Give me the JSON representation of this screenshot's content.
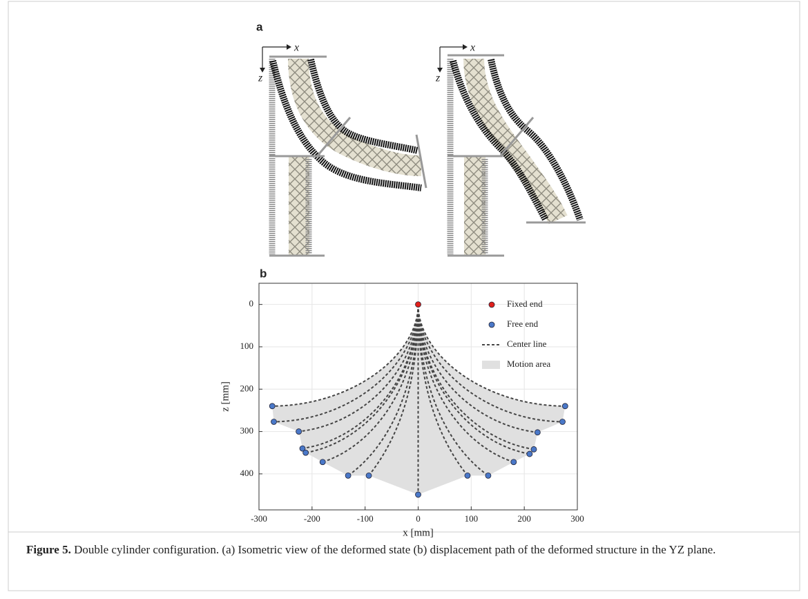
{
  "panel_a": {
    "label": "a",
    "axis_x": "x",
    "axis_z": "z"
  },
  "chart_data": {
    "type": "scatter",
    "panel_label": "b",
    "xlabel": "x [mm]",
    "ylabel": "z [mm]",
    "xlim": [
      -300,
      300
    ],
    "ylim": [
      -50,
      485
    ],
    "y_inverted": true,
    "xticks": [
      -300,
      -200,
      -100,
      0,
      100,
      200,
      300
    ],
    "yticks": [
      0,
      100,
      200,
      300,
      400
    ],
    "grid": true,
    "legend": "upper right",
    "series": [
      {
        "name": "Fixed end",
        "color": "#e0201b",
        "x": [
          0
        ],
        "values": [
          0
        ]
      },
      {
        "name": "Free end",
        "color": "#4a78c8",
        "x": [
          -275,
          -272,
          -225,
          -218,
          -212,
          -180,
          -132,
          -93,
          0,
          93,
          132,
          180,
          210,
          218,
          225,
          272,
          277
        ],
        "values": [
          240,
          277,
          300,
          340,
          350,
          372,
          404,
          404,
          449,
          404,
          404,
          372,
          353,
          342,
          302,
          277,
          240
        ]
      }
    ],
    "center_line": {
      "name": "Center line",
      "color": "#444444"
    },
    "motion_area": {
      "name": "Motion area",
      "color": "#e0e0e0"
    }
  },
  "figure": {
    "label": "Figure 5.",
    "caption": "Double cylinder configuration. (a) Isometric view of the deformed state (b) displacement path of the deformed structure in the YZ plane."
  }
}
